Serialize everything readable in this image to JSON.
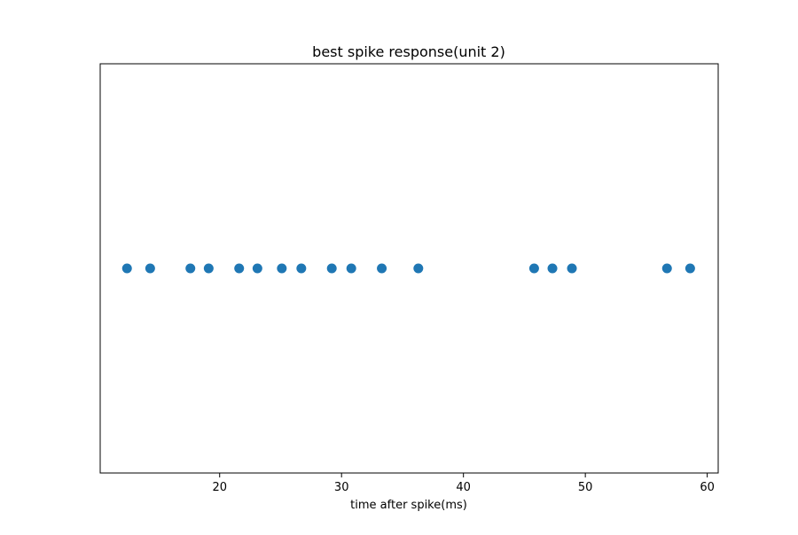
{
  "chart_data": {
    "type": "scatter",
    "title": "best spike response(unit 2)",
    "xlabel": "time after spike(ms)",
    "ylabel": "",
    "xlim": [
      10.2,
      60.9
    ],
    "ylim": [
      -1,
      1
    ],
    "x_ticks": [
      20,
      30,
      40,
      50,
      60
    ],
    "x_tick_labels": [
      "20",
      "30",
      "40",
      "50",
      "60"
    ],
    "y_ticks_shown": false,
    "grid": false,
    "legend": "none",
    "marker_color": "#1f77b4",
    "series": [
      {
        "x": [
          12.4,
          14.3,
          17.6,
          19.1,
          21.6,
          23.1,
          25.1,
          26.7,
          29.2,
          30.8,
          33.3,
          36.3,
          45.8,
          47.3,
          48.9,
          56.7,
          58.6
        ],
        "y": [
          0,
          0,
          0,
          0,
          0,
          0,
          0,
          0,
          0,
          0,
          0,
          0,
          0,
          0,
          0,
          0,
          0
        ]
      }
    ]
  }
}
